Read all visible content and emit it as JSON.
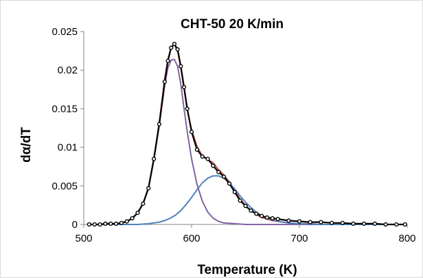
{
  "chart_data": {
    "type": "line",
    "title": "CHT-50 20 K/min",
    "xlabel": "Temperature (K)",
    "ylabel": "dα/dT",
    "xlim": [
      500,
      800
    ],
    "ylim": [
      0,
      0.025
    ],
    "x_ticks": [
      "500",
      "600",
      "700",
      "800"
    ],
    "y_ticks": [
      "0",
      "0.005",
      "0.01",
      "0.015",
      "0.02",
      "0.025"
    ],
    "grid": false,
    "legend": "none",
    "series": [
      {
        "color": "#000000",
        "style": "markers",
        "x": [
          505,
          510,
          515,
          520,
          525,
          530,
          535,
          540,
          545,
          550,
          555,
          560,
          565,
          570,
          575,
          578,
          581,
          584,
          587,
          590,
          593,
          596,
          600,
          605,
          610,
          615,
          620,
          625,
          630,
          635,
          640,
          645,
          650,
          655,
          660,
          665,
          670,
          675,
          680,
          690,
          700,
          710,
          720,
          730,
          740,
          750,
          760,
          770,
          780,
          790,
          798
        ],
        "y": [
          0,
          0,
          0,
          0.0001,
          0.0001,
          0.0001,
          0.0002,
          0.0004,
          0.0008,
          0.0015,
          0.0027,
          0.0047,
          0.0085,
          0.013,
          0.0185,
          0.0212,
          0.0229,
          0.0234,
          0.0227,
          0.0205,
          0.0178,
          0.015,
          0.012,
          0.0097,
          0.0088,
          0.0085,
          0.0076,
          0.0068,
          0.0062,
          0.0053,
          0.0042,
          0.0031,
          0.0024,
          0.0018,
          0.0014,
          0.0011,
          0.0009,
          0.0008,
          0.0007,
          0.0005,
          0.0004,
          0.0003,
          0.0003,
          0.0002,
          0.0002,
          0.0001,
          0.0001,
          0.0001,
          0,
          0,
          0
        ]
      },
      {
        "color": "#c0504d",
        "style": "line",
        "x": [
          505,
          510,
          515,
          520,
          525,
          530,
          535,
          540,
          545,
          550,
          555,
          560,
          565,
          570,
          575,
          578,
          581,
          584,
          587,
          590,
          593,
          596,
          600,
          605,
          610,
          615,
          620,
          625,
          630,
          635,
          640,
          645,
          650,
          655,
          660,
          665,
          670,
          675,
          680,
          690,
          700,
          710,
          720,
          730,
          740,
          750,
          760,
          770,
          780,
          790,
          798
        ],
        "y": [
          0,
          0,
          0,
          0,
          0,
          0.0001,
          0.0002,
          0.0004,
          0.0008,
          0.0015,
          0.0027,
          0.0048,
          0.0086,
          0.0132,
          0.0188,
          0.0214,
          0.023,
          0.0233,
          0.0225,
          0.0203,
          0.0176,
          0.0148,
          0.0123,
          0.0101,
          0.0089,
          0.0084,
          0.008,
          0.0071,
          0.0064,
          0.0055,
          0.0044,
          0.0033,
          0.0025,
          0.0018,
          0.0013,
          0.0009,
          0.0007,
          0.0005,
          0.0004,
          0.0002,
          0.0001,
          0.0001,
          0,
          0,
          0,
          0,
          0,
          0,
          0,
          0,
          0
        ]
      },
      {
        "color": "#8064a2",
        "style": "line",
        "x": [
          505,
          510,
          515,
          520,
          525,
          530,
          535,
          540,
          545,
          550,
          555,
          560,
          565,
          570,
          575,
          578,
          581,
          584,
          587,
          590,
          593,
          596,
          600,
          605,
          610,
          615,
          620,
          625,
          630,
          640,
          650,
          660,
          680,
          700,
          750,
          798
        ],
        "y": [
          0,
          0,
          0,
          0,
          0,
          0.0001,
          0.0002,
          0.0004,
          0.0008,
          0.0015,
          0.0027,
          0.0047,
          0.0084,
          0.0128,
          0.018,
          0.0203,
          0.0213,
          0.0214,
          0.0205,
          0.0182,
          0.015,
          0.012,
          0.0085,
          0.0052,
          0.003,
          0.0016,
          0.0008,
          0.0004,
          0.0002,
          0.0001,
          0,
          0,
          0,
          0,
          0,
          0
        ]
      },
      {
        "color": "#4f81bd",
        "style": "line",
        "x": [
          505,
          520,
          540,
          550,
          560,
          570,
          575,
          580,
          585,
          590,
          595,
          600,
          605,
          610,
          615,
          620,
          625,
          630,
          635,
          640,
          645,
          650,
          655,
          660,
          665,
          670,
          680,
          690,
          700,
          720,
          750,
          798
        ],
        "y": [
          0,
          0,
          0,
          0,
          0.0001,
          0.0003,
          0.0005,
          0.0008,
          0.0012,
          0.0018,
          0.0026,
          0.0035,
          0.0045,
          0.0054,
          0.006,
          0.0063,
          0.0063,
          0.006,
          0.0054,
          0.0046,
          0.0037,
          0.0029,
          0.0022,
          0.0016,
          0.0011,
          0.0008,
          0.0004,
          0.0002,
          0.0001,
          0,
          0,
          0
        ]
      }
    ]
  }
}
